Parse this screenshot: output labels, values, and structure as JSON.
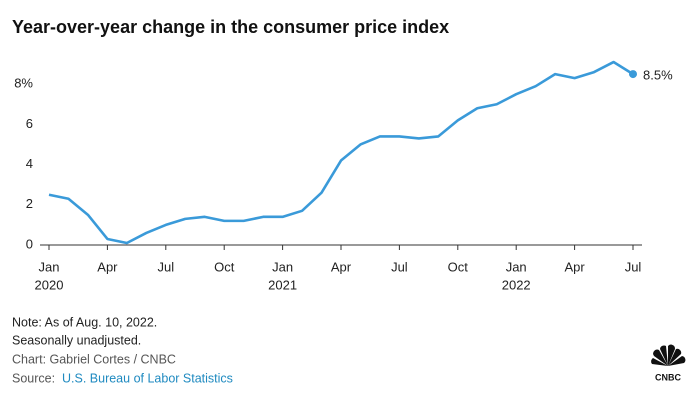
{
  "chart_data": {
    "type": "line",
    "title": "Year-over-year change in the consumer price index",
    "categories": [
      "Jan",
      null,
      null,
      "Apr",
      null,
      null,
      "Jul",
      null,
      null,
      "Oct",
      null,
      null,
      "Jan",
      null,
      null,
      "Apr",
      null,
      null,
      "Jul",
      null,
      null,
      "Oct",
      null,
      null,
      "Jan",
      null,
      null,
      "Apr",
      null,
      null,
      "Jul"
    ],
    "years": [
      "2020",
      null,
      null,
      null,
      null,
      null,
      null,
      null,
      null,
      null,
      null,
      null,
      "2021",
      null,
      null,
      null,
      null,
      null,
      null,
      null,
      null,
      null,
      null,
      null,
      "2022",
      null,
      null,
      null,
      null,
      null,
      null
    ],
    "values": [
      2.5,
      2.3,
      1.5,
      0.3,
      0.1,
      0.6,
      1.0,
      1.3,
      1.4,
      1.2,
      1.2,
      1.4,
      1.4,
      1.7,
      2.6,
      4.2,
      5.0,
      5.4,
      5.4,
      5.3,
      5.4,
      6.2,
      6.8,
      7.0,
      7.5,
      7.9,
      8.5,
      8.3,
      8.6,
      9.1,
      8.5
    ],
    "value_labels": [
      null,
      null,
      null,
      null,
      null,
      null,
      null,
      null,
      null,
      null,
      null,
      null,
      null,
      null,
      null,
      null,
      null,
      null,
      null,
      null,
      null,
      null,
      null,
      null,
      null,
      null,
      null,
      null,
      null,
      null,
      "8.5%"
    ],
    "color": "#3a9ad9",
    "ylim": [
      0,
      9.5
    ],
    "yticks": [
      0,
      2,
      4,
      6,
      {
        "value": 8,
        "label": "8%"
      }
    ],
    "grid": false
  },
  "notes": [
    "Note: As of Aug. 10, 2022.",
    "Seasonally unadjusted."
  ],
  "credit": "Chart: Gabriel Cortes / CNBC",
  "source_label": "Source:",
  "source": "U.S. Bureau of Labor Statistics",
  "logo": "CNBC"
}
